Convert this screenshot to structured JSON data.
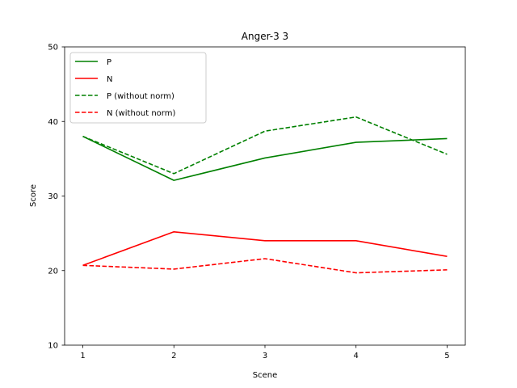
{
  "chart_data": {
    "type": "line",
    "title": "Anger-3 3",
    "xlabel": "Scene",
    "ylabel": "Score",
    "x": [
      1,
      2,
      3,
      4,
      5
    ],
    "xticks": [
      "1",
      "2",
      "3",
      "4",
      "5"
    ],
    "xlim": [
      0.8,
      5.2
    ],
    "ylim": [
      10,
      50
    ],
    "yticks": [
      10,
      20,
      30,
      40,
      50
    ],
    "grid": false,
    "legend_placement": "upper-left",
    "series": [
      {
        "name": "P",
        "values": [
          38.0,
          32.1,
          35.1,
          37.2,
          37.7
        ],
        "color": "#008000",
        "linestyle": "solid"
      },
      {
        "name": "N",
        "values": [
          20.7,
          25.2,
          24.0,
          24.0,
          21.9
        ],
        "color": "#ff0000",
        "linestyle": "solid"
      },
      {
        "name": "P (without norm)",
        "values": [
          38.0,
          33.0,
          38.7,
          40.6,
          35.6
        ],
        "color": "#008000",
        "linestyle": "dashed"
      },
      {
        "name": "N (without norm)",
        "values": [
          20.7,
          20.2,
          21.6,
          19.7,
          20.1
        ],
        "color": "#ff0000",
        "linestyle": "dashed"
      }
    ]
  }
}
